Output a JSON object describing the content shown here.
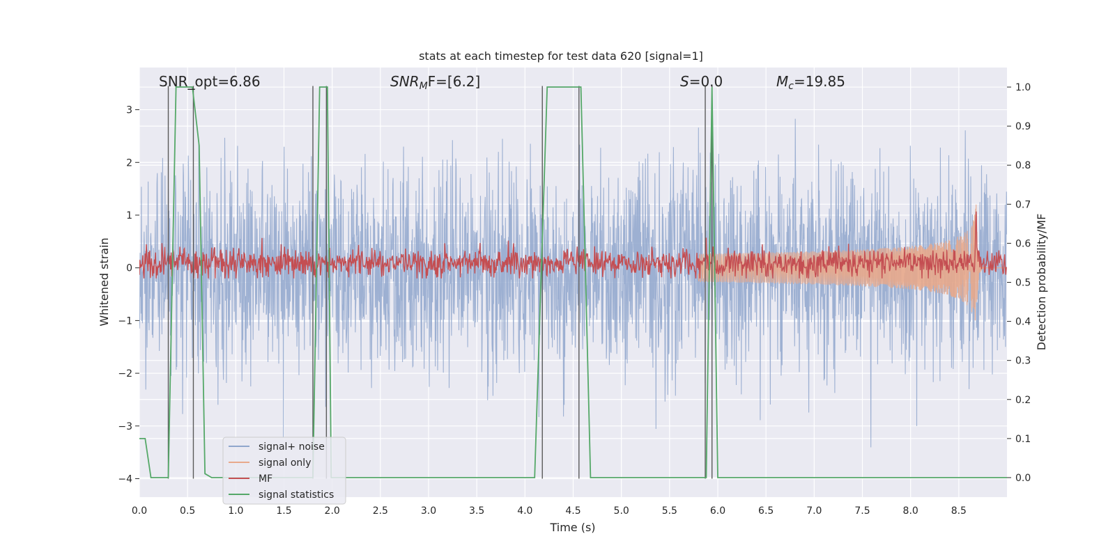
{
  "chart_data": {
    "type": "line",
    "title": "stats at each timestep for test data 620 [signal=1]",
    "xlabel": "Time (s)",
    "ylabel": "Whitened strain",
    "y2label": "Detection probability/MF",
    "xlim": [
      0.0,
      9.0
    ],
    "ylim": [
      -4.35,
      3.8
    ],
    "y2lim": [
      -0.05,
      1.05
    ],
    "xticks": [
      0.0,
      0.5,
      1.0,
      1.5,
      2.0,
      2.5,
      3.0,
      3.5,
      4.0,
      4.5,
      5.0,
      5.5,
      6.0,
      6.5,
      7.0,
      7.5,
      8.0,
      8.5
    ],
    "xtick_labels": [
      "0.0",
      "0.5",
      "1.0",
      "1.5",
      "2.0",
      "2.5",
      "3.0",
      "3.5",
      "4.0",
      "4.5",
      "5.0",
      "5.5",
      "6.0",
      "6.5",
      "7.0",
      "7.5",
      "8.0",
      "8.5"
    ],
    "yticks": [
      -4,
      -3,
      -2,
      -1,
      0,
      1,
      2,
      3
    ],
    "ytick_labels": [
      "−4",
      "−3",
      "−2",
      "−1",
      "0",
      "1",
      "2",
      "3"
    ],
    "y2ticks": [
      0.0,
      0.1,
      0.2,
      0.3,
      0.4,
      0.5,
      0.6,
      0.7,
      0.8,
      0.9,
      1.0
    ],
    "y2tick_labels": [
      "0.0",
      "0.1",
      "0.2",
      "0.3",
      "0.4",
      "0.5",
      "0.6",
      "0.7",
      "0.8",
      "0.9",
      "1.0"
    ],
    "grid": true,
    "legend_position": "lower-left",
    "annotations": {
      "snr_opt": "SNR_opt=6.86",
      "snr_mf_base": "SNR",
      "snr_mf_sub": "M",
      "snr_mf_rest": "F=[6.2]",
      "s_base": "S",
      "s_rest": "=0.0",
      "mc_base": "M",
      "mc_sub": "c",
      "mc_rest": "=19.85"
    },
    "series": [
      {
        "name": "signal+ noise",
        "color": "#8fa6cc",
        "axis": "left",
        "noise_std": 0.95,
        "sample_step_s": 0.0035
      },
      {
        "name": "signal only",
        "color": "#e8a98b",
        "axis": "left",
        "chirp": {
          "start_s": 5.8,
          "peak_s": 8.68,
          "peak_amplitude": 1.2
        }
      },
      {
        "name": "MF",
        "color": "#c44e52",
        "axis": "right",
        "baseline": 0.55,
        "spread": 0.03,
        "peak": {
          "x": 8.68,
          "y": 0.67
        }
      },
      {
        "name": "signal statistics",
        "color": "#55a868",
        "axis": "right",
        "x": [
          0.0,
          0.06,
          0.12,
          0.3,
          0.38,
          0.55,
          0.62,
          0.68,
          0.75,
          1.8,
          1.87,
          1.95,
          1.99,
          2.05,
          4.1,
          4.23,
          4.58,
          4.68,
          5.85,
          5.88,
          5.94,
          6.0,
          9.0
        ],
        "y": [
          0.1,
          0.1,
          0.0,
          0.0,
          1.0,
          1.0,
          0.85,
          0.01,
          0.0,
          0.0,
          1.0,
          1.0,
          0.0,
          0.0,
          0.0,
          1.0,
          1.0,
          0.0,
          0.0,
          0.0,
          1.0,
          0.0,
          0.0
        ]
      }
    ],
    "vertical_markers": {
      "color": "#5a5a5a",
      "y_range": [
        -4.0,
        3.45
      ],
      "x": [
        0.3,
        0.56,
        1.8,
        1.94,
        4.18,
        4.56,
        5.87,
        5.94
      ]
    }
  }
}
